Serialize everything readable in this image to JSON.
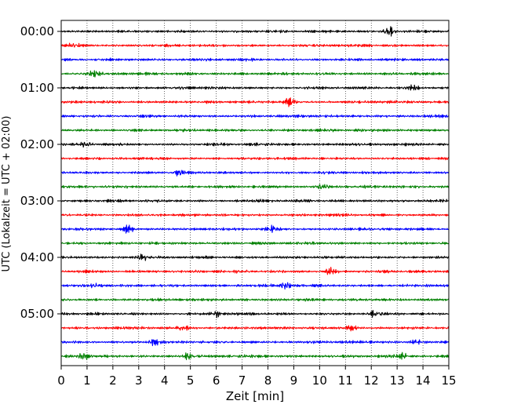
{
  "chart_data": {
    "type": "line",
    "title": "",
    "xlabel": "Zeit  [min]",
    "ylabel": "UTC (Lokalzeit = UTC + 02:00)",
    "xlim": [
      0,
      15
    ],
    "x_ticks": [
      "0",
      "1",
      "2",
      "3",
      "4",
      "5",
      "6",
      "7",
      "8",
      "9",
      "10",
      "11",
      "12",
      "13",
      "14",
      "15"
    ],
    "y_ticks": [
      "00:00",
      "01:00",
      "02:00",
      "03:00",
      "04:00",
      "05:00"
    ],
    "trace_interval_min": 15,
    "trace_count": 24,
    "trace_colors": [
      "#000000",
      "#ff0000",
      "#0000ff",
      "#008000"
    ],
    "vertical_grid": "dotted",
    "bursts": [
      {
        "trace": 0,
        "at_min": 12.7,
        "amplitude": 1.4
      },
      {
        "trace": 1,
        "at_min": 0.5,
        "amplitude": 1.1
      },
      {
        "trace": 3,
        "at_min": 1.3,
        "amplitude": 1.0
      },
      {
        "trace": 4,
        "at_min": 13.6,
        "amplitude": 1.0
      },
      {
        "trace": 5,
        "at_min": 8.8,
        "amplitude": 1.3
      },
      {
        "trace": 8,
        "at_min": 1.0,
        "amplitude": 0.9
      },
      {
        "trace": 10,
        "at_min": 4.6,
        "amplitude": 1.1
      },
      {
        "trace": 11,
        "at_min": 10.1,
        "amplitude": 1.2
      },
      {
        "trace": 14,
        "at_min": 2.6,
        "amplitude": 1.2
      },
      {
        "trace": 14,
        "at_min": 8.2,
        "amplitude": 1.0
      },
      {
        "trace": 16,
        "at_min": 3.1,
        "amplitude": 1.2
      },
      {
        "trace": 17,
        "at_min": 10.4,
        "amplitude": 1.1
      },
      {
        "trace": 18,
        "at_min": 8.7,
        "amplitude": 1.3
      },
      {
        "trace": 18,
        "at_min": 1.3,
        "amplitude": 1.0
      },
      {
        "trace": 20,
        "at_min": 12.2,
        "amplitude": 1.3
      },
      {
        "trace": 20,
        "at_min": 6.0,
        "amplitude": 1.0
      },
      {
        "trace": 21,
        "at_min": 11.2,
        "amplitude": 1.3
      },
      {
        "trace": 21,
        "at_min": 4.7,
        "amplitude": 1.0
      },
      {
        "trace": 22,
        "at_min": 13.8,
        "amplitude": 1.0
      },
      {
        "trace": 22,
        "at_min": 3.6,
        "amplitude": 1.0
      },
      {
        "trace": 23,
        "at_min": 0.9,
        "amplitude": 1.4
      },
      {
        "trace": 23,
        "at_min": 4.9,
        "amplitude": 1.2
      },
      {
        "trace": 23,
        "at_min": 13.2,
        "amplitude": 1.0
      }
    ]
  }
}
